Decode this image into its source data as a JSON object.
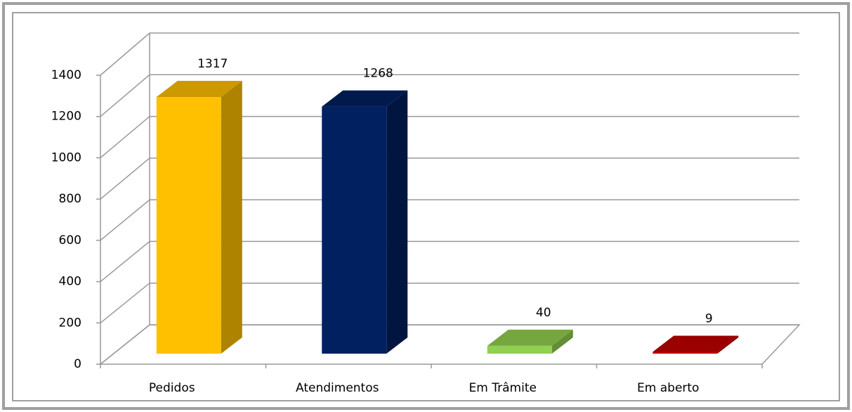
{
  "chart_data": {
    "type": "bar",
    "categories": [
      "Pedidos",
      "Atendimentos",
      "Em Trâmite",
      "Em aberto"
    ],
    "values": [
      1317,
      1268,
      40,
      9
    ],
    "colors": [
      "#ffc000",
      "#002060",
      "#92d050",
      "#c00000"
    ],
    "ylim": [
      0,
      1400
    ],
    "yticks": [
      0,
      200,
      400,
      600,
      800,
      1000,
      1200,
      1400
    ],
    "grid": true
  }
}
